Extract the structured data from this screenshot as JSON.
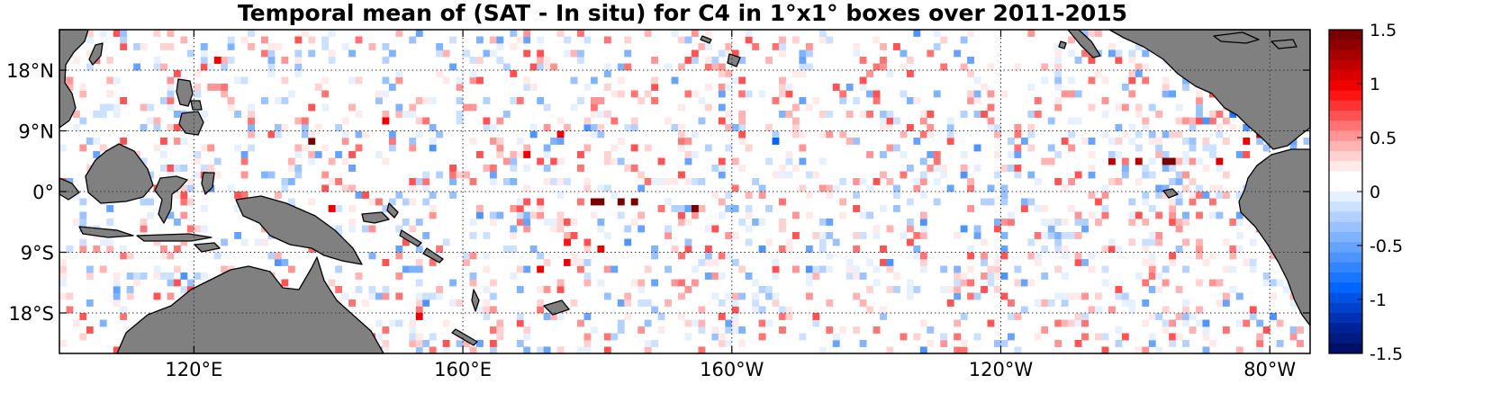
{
  "chart_data": {
    "type": "heatmap",
    "title": "Temporal mean of (SAT - In situ) for C4 in 1°x1° boxes over 2011-2015",
    "x_axis": {
      "range_deg_east": [
        100,
        286
      ],
      "ticks": [
        {
          "value": 120,
          "label": "120°E"
        },
        {
          "value": 160,
          "label": "160°E"
        },
        {
          "value": 200,
          "label": "160°W"
        },
        {
          "value": 240,
          "label": "120°W"
        },
        {
          "value": 280,
          "label": "80°W"
        }
      ]
    },
    "y_axis": {
      "range_deg_north": [
        -24,
        24
      ],
      "ticks": [
        {
          "value": 18,
          "label": "18°N"
        },
        {
          "value": 9,
          "label": "9°N"
        },
        {
          "value": 0,
          "label": "0°"
        },
        {
          "value": -9,
          "label": "9°S"
        },
        {
          "value": -18,
          "label": "18°S"
        }
      ]
    },
    "grid": "dotted",
    "colorbar": {
      "range": [
        -1.5,
        1.5
      ],
      "ticks": [
        "1.5",
        "1",
        "0.5",
        "0",
        "-0.5",
        "-1",
        "-1.5"
      ],
      "position": "right",
      "colors_high_to_low": [
        "#780000",
        "#8f0000",
        "#a80000",
        "#c00000",
        "#d80000",
        "#f00000",
        "#ff1414",
        "#ff3333",
        "#ff5252",
        "#ff7373",
        "#ff9494",
        "#ffb3b3",
        "#ffd1d1",
        "#ffeaea",
        "#ffffff",
        "#ffffff",
        "#e6f0ff",
        "#cce0ff",
        "#b3d1ff",
        "#99c2ff",
        "#80b3ff",
        "#66a3ff",
        "#4d94ff",
        "#3385ff",
        "#1a75ff",
        "#0066ff",
        "#0052e6",
        "#0042cc",
        "#0031b3",
        "#002299",
        "#001a80",
        "#000f66"
      ]
    },
    "notable_cells": [
      {
        "lon": 137,
        "lat": 7,
        "value": 1.5
      },
      {
        "lon": 148,
        "lat": 10,
        "value": 1.0
      },
      {
        "lon": 123,
        "lat": 19,
        "value": 1.0
      },
      {
        "lon": 179,
        "lat": -2,
        "value": 1.5
      },
      {
        "lon": 180,
        "lat": -2,
        "value": 1.5
      },
      {
        "lon": 183,
        "lat": -2,
        "value": 1.5
      },
      {
        "lon": 185,
        "lat": -2,
        "value": 1.5
      },
      {
        "lon": 194,
        "lat": -3,
        "value": 1.5
      },
      {
        "lon": 174,
        "lat": 8,
        "value": 1.0
      },
      {
        "lon": 169,
        "lat": 5,
        "value": 1.0
      },
      {
        "lon": 264,
        "lat": 4,
        "value": 1.5
      },
      {
        "lon": 265,
        "lat": 4,
        "value": 1.5
      },
      {
        "lon": 260,
        "lat": 4,
        "value": 1.2
      },
      {
        "lon": 256,
        "lat": 4,
        "value": 1.2
      },
      {
        "lon": 272,
        "lat": 4,
        "value": 1.1
      },
      {
        "lon": 276,
        "lat": 7,
        "value": 1.0
      },
      {
        "lon": 278,
        "lat": 8,
        "value": 1.2
      },
      {
        "lon": 279,
        "lat": 11,
        "value": 1.0
      },
      {
        "lon": 180,
        "lat": -9,
        "value": 1.0
      },
      {
        "lon": 175,
        "lat": -11,
        "value": 1.0
      },
      {
        "lon": 153,
        "lat": -19,
        "value": 1.0
      },
      {
        "lon": 140,
        "lat": -3,
        "value": 1.0
      },
      {
        "lon": 171,
        "lat": -12,
        "value": 1.0
      },
      {
        "lon": 175,
        "lat": -8,
        "value": 0.9
      },
      {
        "lon": 149,
        "lat": 8,
        "value": -0.5
      },
      {
        "lon": 174,
        "lat": 7,
        "value": -0.5
      },
      {
        "lon": 206,
        "lat": 7,
        "value": -0.9
      },
      {
        "lon": 200,
        "lat": 9,
        "value": -0.4
      },
      {
        "lon": 274,
        "lat": 11,
        "value": -0.8
      },
      {
        "lon": 270,
        "lat": 10,
        "value": -0.6
      },
      {
        "lon": 276,
        "lat": 9,
        "value": -0.6
      },
      {
        "lon": 283,
        "lat": 7,
        "value": -0.5
      },
      {
        "lon": 282,
        "lat": 0,
        "value": -0.5
      },
      {
        "lon": 169,
        "lat": -12,
        "value": -0.5
      },
      {
        "lon": 153,
        "lat": -12,
        "value": -0.4
      },
      {
        "lon": 152,
        "lat": -12,
        "value": -0.4
      },
      {
        "lon": 158,
        "lat": -14,
        "value": -0.4
      },
      {
        "lon": 171,
        "lat": 13,
        "value": -0.4
      },
      {
        "lon": 141,
        "lat": 5,
        "value": -0.5
      },
      {
        "lon": 256,
        "lat": 20,
        "value": -0.5
      },
      {
        "lon": 269,
        "lat": 12,
        "value": -0.3
      },
      {
        "lon": 195,
        "lat": 10,
        "value": -0.3
      }
    ]
  }
}
